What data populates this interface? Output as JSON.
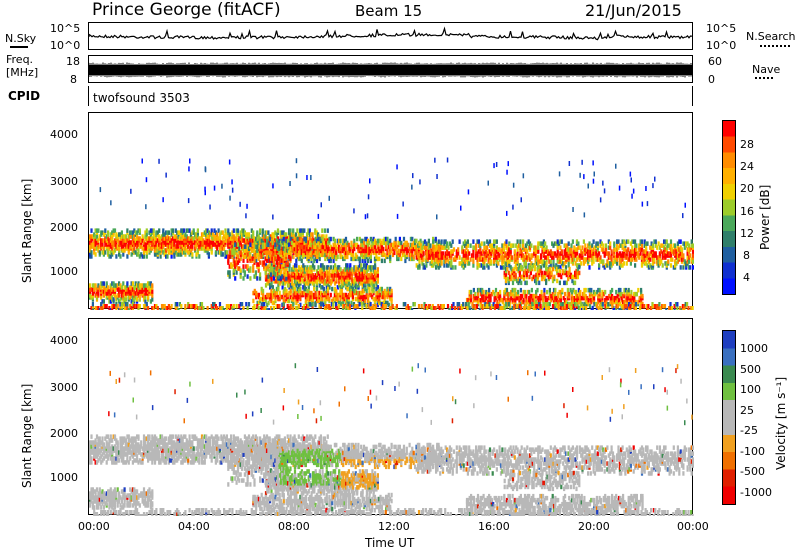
{
  "header": {
    "station": "Prince George (fitACF)",
    "beam": "Beam 15",
    "date": "21/Jun/2015"
  },
  "noise_panel": {
    "left_label": "N.Sky",
    "right_label": "N.Search",
    "left_ticks": [
      "10^5",
      "10^0"
    ],
    "right_ticks": [
      "10^5",
      "10^0"
    ]
  },
  "freq_panel": {
    "left_label_1": "Freq.",
    "left_label_2": "[MHz]",
    "left_ticks": [
      "18",
      "8"
    ],
    "right_ticks": [
      "60",
      "0"
    ],
    "right_label": "Nave"
  },
  "cpid_panel": {
    "label": "CPID",
    "value": "twofsound 3503"
  },
  "chart_data": [
    {
      "type": "heatmap",
      "title": "",
      "ylabel": "Slant Range [km]",
      "yticks": [
        "4000",
        "3000",
        "2000",
        "1000"
      ],
      "ylim": [
        180,
        4600
      ],
      "xlabel": "",
      "colorbar_label": "Power [dB]",
      "colorbar_ticks": [
        "28",
        "24",
        "20",
        "16",
        "12",
        "8",
        "4"
      ],
      "colorbar_colors": [
        "#ff0000",
        "#ff4a00",
        "#ff8c00",
        "#ffb000",
        "#f0d000",
        "#9ccc2a",
        "#4aa85a",
        "#2f7f6a",
        "#1f5fa0",
        "#1030d0",
        "#0010ff"
      ]
    },
    {
      "type": "heatmap",
      "title": "",
      "ylabel": "Slant Range [km]",
      "yticks": [
        "4000",
        "3000",
        "2000",
        "1000"
      ],
      "ylim": [
        180,
        4600
      ],
      "xlabel": "Time UT",
      "xticks": [
        "00:00",
        "04:00",
        "08:00",
        "12:00",
        "16:00",
        "20:00",
        "00:00"
      ],
      "colorbar_label": "Velocity [m s⁻¹]",
      "colorbar_ticks": [
        "1000",
        "500",
        "100",
        "25",
        "-25",
        "-100",
        "-500",
        "-1000"
      ],
      "colorbar_colors": [
        "#1f3fc0",
        "#3a70c0",
        "#3a8a50",
        "#6fc040",
        "#b8b8b8",
        "#b8b8b8",
        "#f0a020",
        "#f07000",
        "#e02000",
        "#f00000"
      ]
    }
  ]
}
